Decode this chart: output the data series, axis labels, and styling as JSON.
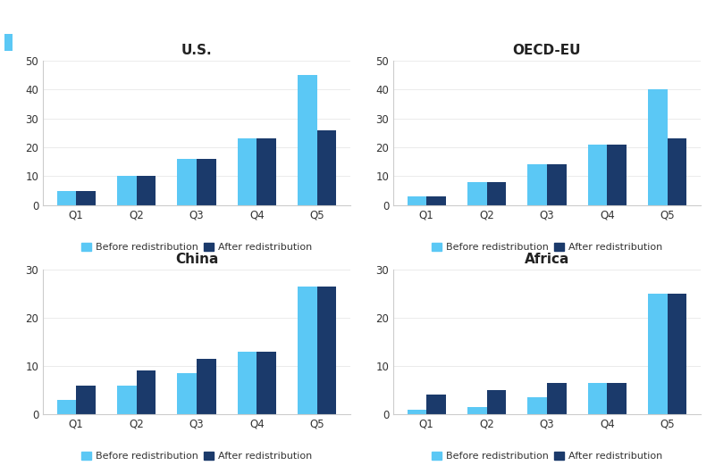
{
  "subplots": [
    {
      "title": "U.S.",
      "ylim": [
        0,
        50
      ],
      "yticks": [
        0,
        10,
        20,
        30,
        40,
        50
      ],
      "before": [
        5,
        10,
        16,
        23,
        45
      ],
      "after": [
        5,
        10,
        16,
        23,
        26
      ]
    },
    {
      "title": "OECD-EU",
      "ylim": [
        0,
        50
      ],
      "yticks": [
        0,
        10,
        20,
        30,
        40,
        50
      ],
      "before": [
        3,
        8,
        14,
        21,
        40
      ],
      "after": [
        3,
        8,
        14,
        21,
        23
      ]
    },
    {
      "title": "China",
      "ylim": [
        0,
        30
      ],
      "yticks": [
        0,
        10,
        20,
        30
      ],
      "before": [
        3,
        6,
        8.5,
        13,
        26.5
      ],
      "after": [
        6,
        9,
        11.5,
        13,
        26.5
      ]
    },
    {
      "title": "Africa",
      "ylim": [
        0,
        30
      ],
      "yticks": [
        0,
        10,
        20,
        30
      ],
      "before": [
        1,
        1.5,
        3.5,
        6.5,
        25
      ],
      "after": [
        4,
        5,
        6.5,
        6.5,
        25
      ]
    }
  ],
  "categories": [
    "Q1",
    "Q2",
    "Q3",
    "Q4",
    "Q5"
  ],
  "color_before": "#5BC8F5",
  "color_after": "#1B3A6B",
  "legend_before": "Before redistribution",
  "legend_after": "After redistribution",
  "header_color": "#29AAE1",
  "header_dark": "#1A1A1A",
  "subheader_color": "#404040",
  "background_color": "#FFFFFF",
  "title_fontsize": 11,
  "tick_fontsize": 8.5,
  "legend_fontsize": 8,
  "bar_width": 0.32
}
